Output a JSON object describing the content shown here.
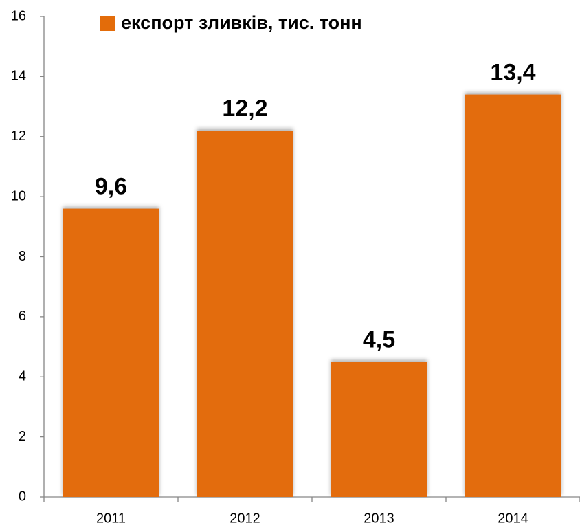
{
  "chart_data": {
    "type": "bar",
    "categories": [
      "2011",
      "2012",
      "2013",
      "2014"
    ],
    "series": [
      {
        "name": "експорт зливків, тис. тонн",
        "color": "#e36c0a",
        "values": [
          9.6,
          12.2,
          4.5,
          13.4
        ],
        "value_labels": [
          "9,6",
          "12,2",
          "4,5",
          "13,4"
        ]
      }
    ],
    "ylim": [
      0,
      16
    ],
    "yticks": [
      0,
      2,
      4,
      6,
      8,
      10,
      12,
      14,
      16
    ],
    "grid": false,
    "legend": "top"
  }
}
